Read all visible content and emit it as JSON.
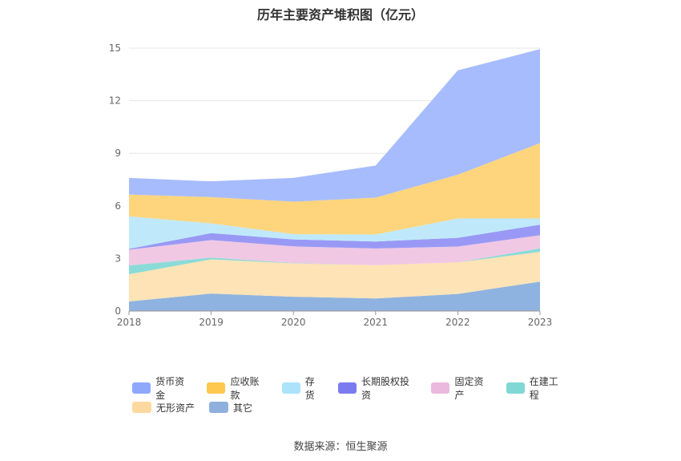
{
  "title": "历年主要资产堆积图（亿元）",
  "source": "数据来源：恒生聚源",
  "chart_data": {
    "type": "area",
    "stacked": true,
    "title": "历年主要资产堆积图（亿元）",
    "x": [
      "2018",
      "2019",
      "2020",
      "2021",
      "2022",
      "2023"
    ],
    "ylim": [
      0,
      15
    ],
    "yticks": [
      0,
      3,
      6,
      9,
      12,
      15
    ],
    "grid": true,
    "legend_position": "bottom",
    "series": [
      {
        "name": "其它",
        "color": "#8fb3e0",
        "values": [
          0.55,
          1.0,
          0.82,
          0.72,
          0.98,
          1.68
        ]
      },
      {
        "name": "无形资产",
        "color": "#fde3b5",
        "values": [
          1.55,
          1.95,
          1.9,
          1.9,
          1.8,
          1.7
        ]
      },
      {
        "name": "在建工程",
        "color": "#8adbd8",
        "values": [
          0.5,
          0.1,
          0.02,
          0.0,
          0.0,
          0.2
        ]
      },
      {
        "name": "固定资产",
        "color": "#f0c8e4",
        "values": [
          0.9,
          1.0,
          0.95,
          0.95,
          0.9,
          0.75
        ]
      },
      {
        "name": "长期股权投资",
        "color": "#9999f5",
        "values": [
          0.05,
          0.4,
          0.4,
          0.4,
          0.5,
          0.6
        ]
      },
      {
        "name": "存货",
        "color": "#bfe9fb",
        "values": [
          1.85,
          0.55,
          0.3,
          0.4,
          1.1,
          0.35
        ]
      },
      {
        "name": "应收账款",
        "color": "#fed57c",
        "values": [
          1.25,
          1.5,
          1.85,
          2.1,
          2.5,
          4.3
        ]
      },
      {
        "name": "货币资金",
        "color": "#a7bcfd",
        "values": [
          0.95,
          0.9,
          1.36,
          1.83,
          5.95,
          5.36
        ]
      }
    ]
  },
  "legend": {
    "rows": [
      [
        {
          "label": "货币资金",
          "color": "#8ea9fb"
        },
        {
          "label": "应收账款",
          "color": "#fec84e"
        },
        {
          "label": "存货",
          "color": "#abe3fb"
        },
        {
          "label": "长期股权投资",
          "color": "#7b7bf0"
        },
        {
          "label": "固定资产",
          "color": "#eab9dd"
        },
        {
          "label": "在建工程",
          "color": "#7fd8d4"
        }
      ],
      [
        {
          "label": "无形资产",
          "color": "#fdd9a0"
        },
        {
          "label": "其它",
          "color": "#8fb0dc"
        }
      ]
    ]
  }
}
